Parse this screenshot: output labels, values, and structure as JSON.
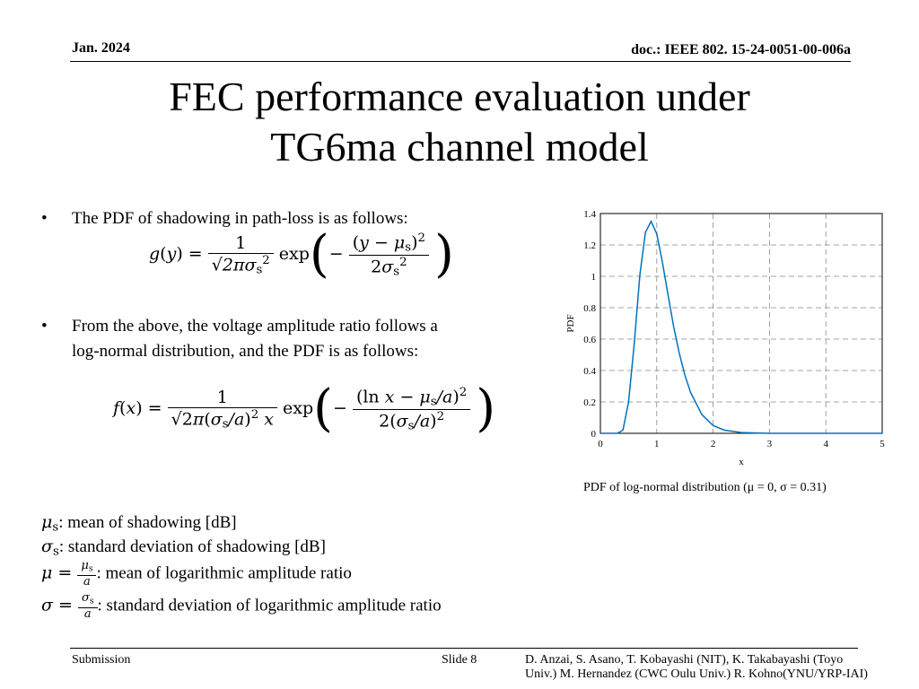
{
  "header": {
    "date": "Jan. 2024",
    "doc": "doc.: IEEE 802. 15-24-0051-00-006a"
  },
  "title": {
    "line1": "FEC performance evaluation under",
    "line2": "TG6ma channel model"
  },
  "bullets": [
    {
      "marker": "•",
      "text": "The PDF of shadowing in path-loss is as follows:"
    },
    {
      "marker": "•",
      "text_line1": "From the above, the voltage amplitude ratio follows a",
      "text_line2": "log-normal distribution, and the PDF is as follows:"
    }
  ],
  "definitions": [
    ": mean of shadowing [dB]",
    ": standard deviation of shadowing [dB]",
    ": mean of logarithmic amplitude ratio",
    ": standard deviation of logarithmic amplitude ratio"
  ],
  "caption": "PDF of log-normal distribution (μ = 0, σ = 0.31)",
  "footer": {
    "submission": "Submission",
    "slide": "Slide 8",
    "authors_line1": "D. Anzai, S. Asano,  T. Kobayashi (NIT), K. Takabayashi (Toyo",
    "authors_line2": "Univ.) M. Hernandez (CWC Oulu Univ.) R. Kohno(YNU/YRP-IAI)"
  },
  "chart_data": {
    "type": "line",
    "xlabel": "x",
    "ylabel": "PDF",
    "xlim": [
      0,
      5
    ],
    "ylim": [
      0,
      1.4
    ],
    "xticks": [
      0,
      1,
      2,
      3,
      4,
      5
    ],
    "yticks": [
      0,
      0.2,
      0.4,
      0.6,
      0.8,
      1,
      1.2,
      1.4
    ],
    "ytick_labels": [
      "0",
      "0.2",
      "0.4",
      "0.6",
      "0.8",
      "1",
      "1.2",
      "1.4"
    ],
    "grid": true,
    "line_color": "#0072BD",
    "series": [
      {
        "x": [
          0,
          0.3,
          0.4,
          0.5,
          0.6,
          0.7,
          0.8,
          0.9,
          1.0,
          1.1,
          1.2,
          1.3,
          1.4,
          1.5,
          1.6,
          1.8,
          2.0,
          2.2,
          2.5,
          3.0,
          4.0,
          5.0
        ],
        "y": [
          0,
          0.0,
          0.02,
          0.2,
          0.57,
          1.01,
          1.28,
          1.35,
          1.27,
          1.09,
          0.88,
          0.68,
          0.51,
          0.37,
          0.26,
          0.12,
          0.05,
          0.02,
          0.005,
          0.0,
          0.0,
          0.0
        ]
      }
    ]
  }
}
